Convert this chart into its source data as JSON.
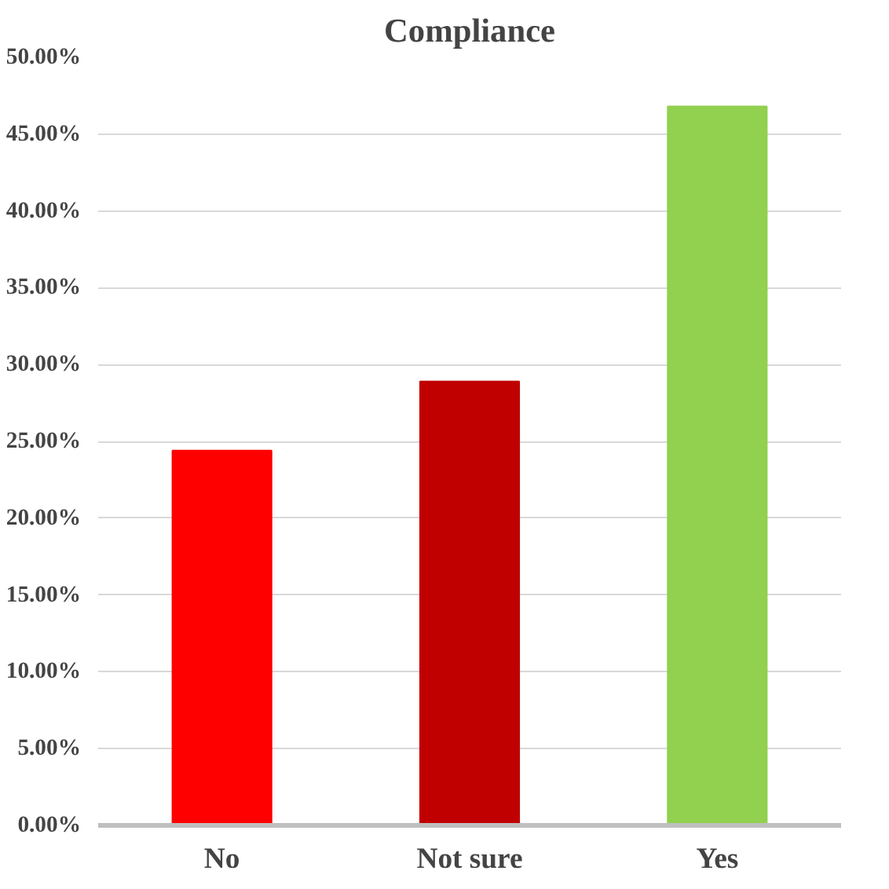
{
  "chart_data": {
    "type": "bar",
    "title": "Compliance",
    "categories": [
      "No",
      "Not sure",
      "Yes"
    ],
    "values": [
      24.4,
      28.9,
      46.8
    ],
    "colors": [
      "#ff0000",
      "#c00000",
      "#92d050"
    ],
    "ylim": [
      0,
      50
    ],
    "yticks": [
      {
        "value": 0,
        "label": "0.00%"
      },
      {
        "value": 5,
        "label": "5.00%"
      },
      {
        "value": 10,
        "label": "10.00%"
      },
      {
        "value": 15,
        "label": "15.00%"
      },
      {
        "value": 20,
        "label": "20.00%"
      },
      {
        "value": 25,
        "label": "25.00%"
      },
      {
        "value": 30,
        "label": "30.00%"
      },
      {
        "value": 35,
        "label": "35.00%"
      },
      {
        "value": 40,
        "label": "40.00%"
      },
      {
        "value": 45,
        "label": "45.00%"
      },
      {
        "value": 50,
        "label": "50.00%"
      }
    ],
    "grid": "y"
  }
}
